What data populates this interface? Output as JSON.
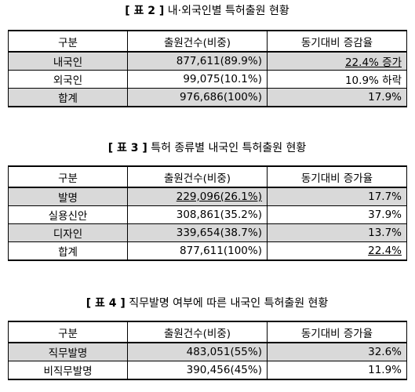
{
  "table2": {
    "title_prefix": "[ 표 2 ]",
    "title_text": "내·외국인별 특허출원 현황",
    "headers": [
      "구분",
      "출원건수(비중)",
      "동기대비 증감율"
    ],
    "rows": [
      {
        "label": "내국인",
        "count": "877,611(89.9%)",
        "rate": "22.4% 증가"
      },
      {
        "label": "외국인",
        "count": "99,075(10.1%)",
        "rate": "10.9% 하락"
      },
      {
        "label": "합계",
        "count": "976,686(100%)",
        "rate": "17.9%"
      }
    ]
  },
  "table3": {
    "title_prefix": "[ 표 3 ]",
    "title_text": "특허 종류별 내국인 특허출원 현황",
    "headers": [
      "구분",
      "출원건수(비중)",
      "동기대비 증가율"
    ],
    "rows": [
      {
        "label": "발명",
        "count": "229,096(26.1%)",
        "rate": "17.7%"
      },
      {
        "label": "실용신안",
        "count": "308,861(35.2%)",
        "rate": "37.9%"
      },
      {
        "label": "디자인",
        "count": "339,654(38.7%)",
        "rate": "13.7%"
      },
      {
        "label": "합계",
        "count": "877,611(100%)",
        "rate": "22.4%"
      }
    ]
  },
  "table4": {
    "title_prefix": "[ 표 4 ]",
    "title_text": "직무발명 여부에 따른 내국인 특허출원 현황",
    "headers": [
      "구분",
      "출원건수(비중)",
      "동기대비 증가율"
    ],
    "rows": [
      {
        "label": "직무발명",
        "count": "483,051(55%)",
        "rate": "32.6%"
      },
      {
        "label": "비직무발명",
        "count": "390,456(45%)",
        "rate": "11.9%"
      }
    ]
  }
}
